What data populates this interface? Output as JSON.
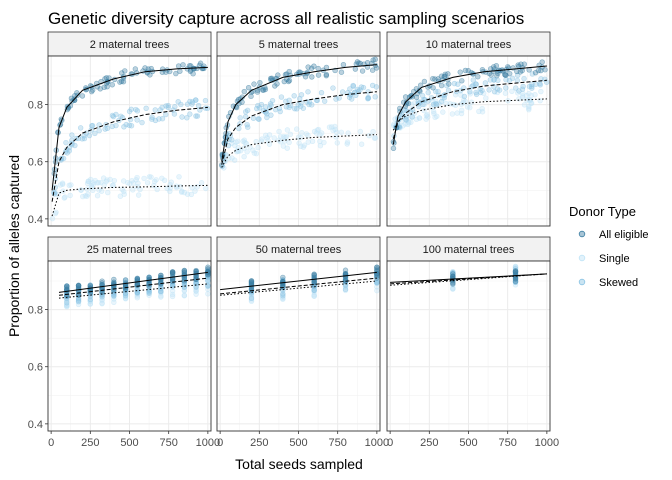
{
  "chart_data": {
    "type": "scatter",
    "title": "Genetic diversity capture across all realistic sampling scenarios",
    "xlabel": "Total seeds sampled",
    "ylabel": "Proportion of alleles captured",
    "xlim": [
      -20,
      1020
    ],
    "ylim": [
      0.375,
      0.97
    ],
    "x_ticks": [
      0,
      250,
      500,
      750,
      1000
    ],
    "x_tick_labels": [
      "0",
      "250",
      "500",
      "750",
      "1000"
    ],
    "y_ticks": [
      0.4,
      0.6,
      0.8
    ],
    "y_tick_labels": [
      "0.4",
      "0.6",
      "0.8"
    ],
    "grid": true,
    "legend": {
      "title": "Donor Type",
      "position": "right",
      "entries": [
        {
          "label": "All eligible",
          "color": "#3d7fa3",
          "line": "solid"
        },
        {
          "label": "Single",
          "color": "#bfe3f6",
          "line": "dotted"
        },
        {
          "label": "Skewed",
          "color": "#8ac3e3",
          "line": "dashed"
        }
      ]
    },
    "panels": [
      {
        "label": "2 maternal trees",
        "n_trees": 2,
        "series": [
          {
            "name": "All eligible",
            "x": [
              6,
              50,
              100,
              200,
              400,
              600,
              800,
              1000
            ],
            "y": [
              0.5,
              0.72,
              0.79,
              0.85,
              0.89,
              0.915,
              0.925,
              0.93
            ]
          },
          {
            "name": "Skewed",
            "x": [
              6,
              50,
              100,
              200,
              400,
              600,
              800,
              1000
            ],
            "y": [
              0.46,
              0.6,
              0.65,
              0.7,
              0.74,
              0.765,
              0.78,
              0.79
            ]
          },
          {
            "name": "Single",
            "x": [
              6,
              50,
              100,
              200,
              400,
              600,
              800,
              1000
            ],
            "y": [
              0.41,
              0.49,
              0.5,
              0.505,
              0.51,
              0.512,
              0.515,
              0.517
            ]
          }
        ]
      },
      {
        "label": "5 maternal trees",
        "n_trees": 5,
        "series": [
          {
            "name": "All eligible",
            "x": [
              10,
              50,
              100,
              200,
              400,
              600,
              800,
              1000
            ],
            "y": [
              0.6,
              0.74,
              0.8,
              0.85,
              0.895,
              0.915,
              0.93,
              0.94
            ]
          },
          {
            "name": "Skewed",
            "x": [
              10,
              50,
              100,
              200,
              400,
              600,
              800,
              1000
            ],
            "y": [
              0.59,
              0.68,
              0.72,
              0.76,
              0.8,
              0.82,
              0.835,
              0.845
            ]
          },
          {
            "name": "Single",
            "x": [
              10,
              50,
              100,
              200,
              400,
              600,
              800,
              1000
            ],
            "y": [
              0.58,
              0.62,
              0.64,
              0.66,
              0.675,
              0.685,
              0.69,
              0.695
            ]
          }
        ]
      },
      {
        "label": "10 maternal trees",
        "n_trees": 10,
        "series": [
          {
            "name": "All eligible",
            "x": [
              20,
              50,
              100,
              200,
              400,
              600,
              800,
              1000
            ],
            "y": [
              0.66,
              0.76,
              0.81,
              0.86,
              0.895,
              0.915,
              0.925,
              0.935
            ]
          },
          {
            "name": "Skewed",
            "x": [
              20,
              50,
              100,
              200,
              400,
              600,
              800,
              1000
            ],
            "y": [
              0.68,
              0.74,
              0.77,
              0.81,
              0.845,
              0.865,
              0.875,
              0.885
            ]
          },
          {
            "name": "Single",
            "x": [
              20,
              50,
              100,
              200,
              400,
              600,
              800,
              1000
            ],
            "y": [
              0.71,
              0.74,
              0.76,
              0.78,
              0.8,
              0.81,
              0.815,
              0.82
            ]
          }
        ]
      },
      {
        "label": "25 maternal trees",
        "n_trees": 25,
        "series": [
          {
            "name": "All eligible",
            "x": [
              50,
              1000
            ],
            "y": [
              0.86,
              0.93
            ]
          },
          {
            "name": "Skewed",
            "x": [
              50,
              1000
            ],
            "y": [
              0.85,
              0.91
            ]
          },
          {
            "name": "Single",
            "x": [
              50,
              1000
            ],
            "y": [
              0.84,
              0.89
            ]
          }
        ]
      },
      {
        "label": "50 maternal trees",
        "n_trees": 50,
        "series": [
          {
            "name": "All eligible",
            "x": [
              0,
              1000
            ],
            "y": [
              0.87,
              0.93
            ]
          },
          {
            "name": "Skewed",
            "x": [
              0,
              1000
            ],
            "y": [
              0.855,
              0.91
            ]
          },
          {
            "name": "Single",
            "x": [
              0,
              1000
            ],
            "y": [
              0.85,
              0.9
            ]
          }
        ]
      },
      {
        "label": "100 maternal trees",
        "n_trees": 100,
        "series": [
          {
            "name": "All eligible",
            "x": [
              0,
              1000
            ],
            "y": [
              0.895,
              0.925
            ]
          },
          {
            "name": "Skewed",
            "x": [
              0,
              1000
            ],
            "y": [
              0.89,
              0.925
            ]
          },
          {
            "name": "Single",
            "x": [
              0,
              1000
            ],
            "y": [
              0.885,
              0.925
            ]
          }
        ]
      }
    ]
  }
}
